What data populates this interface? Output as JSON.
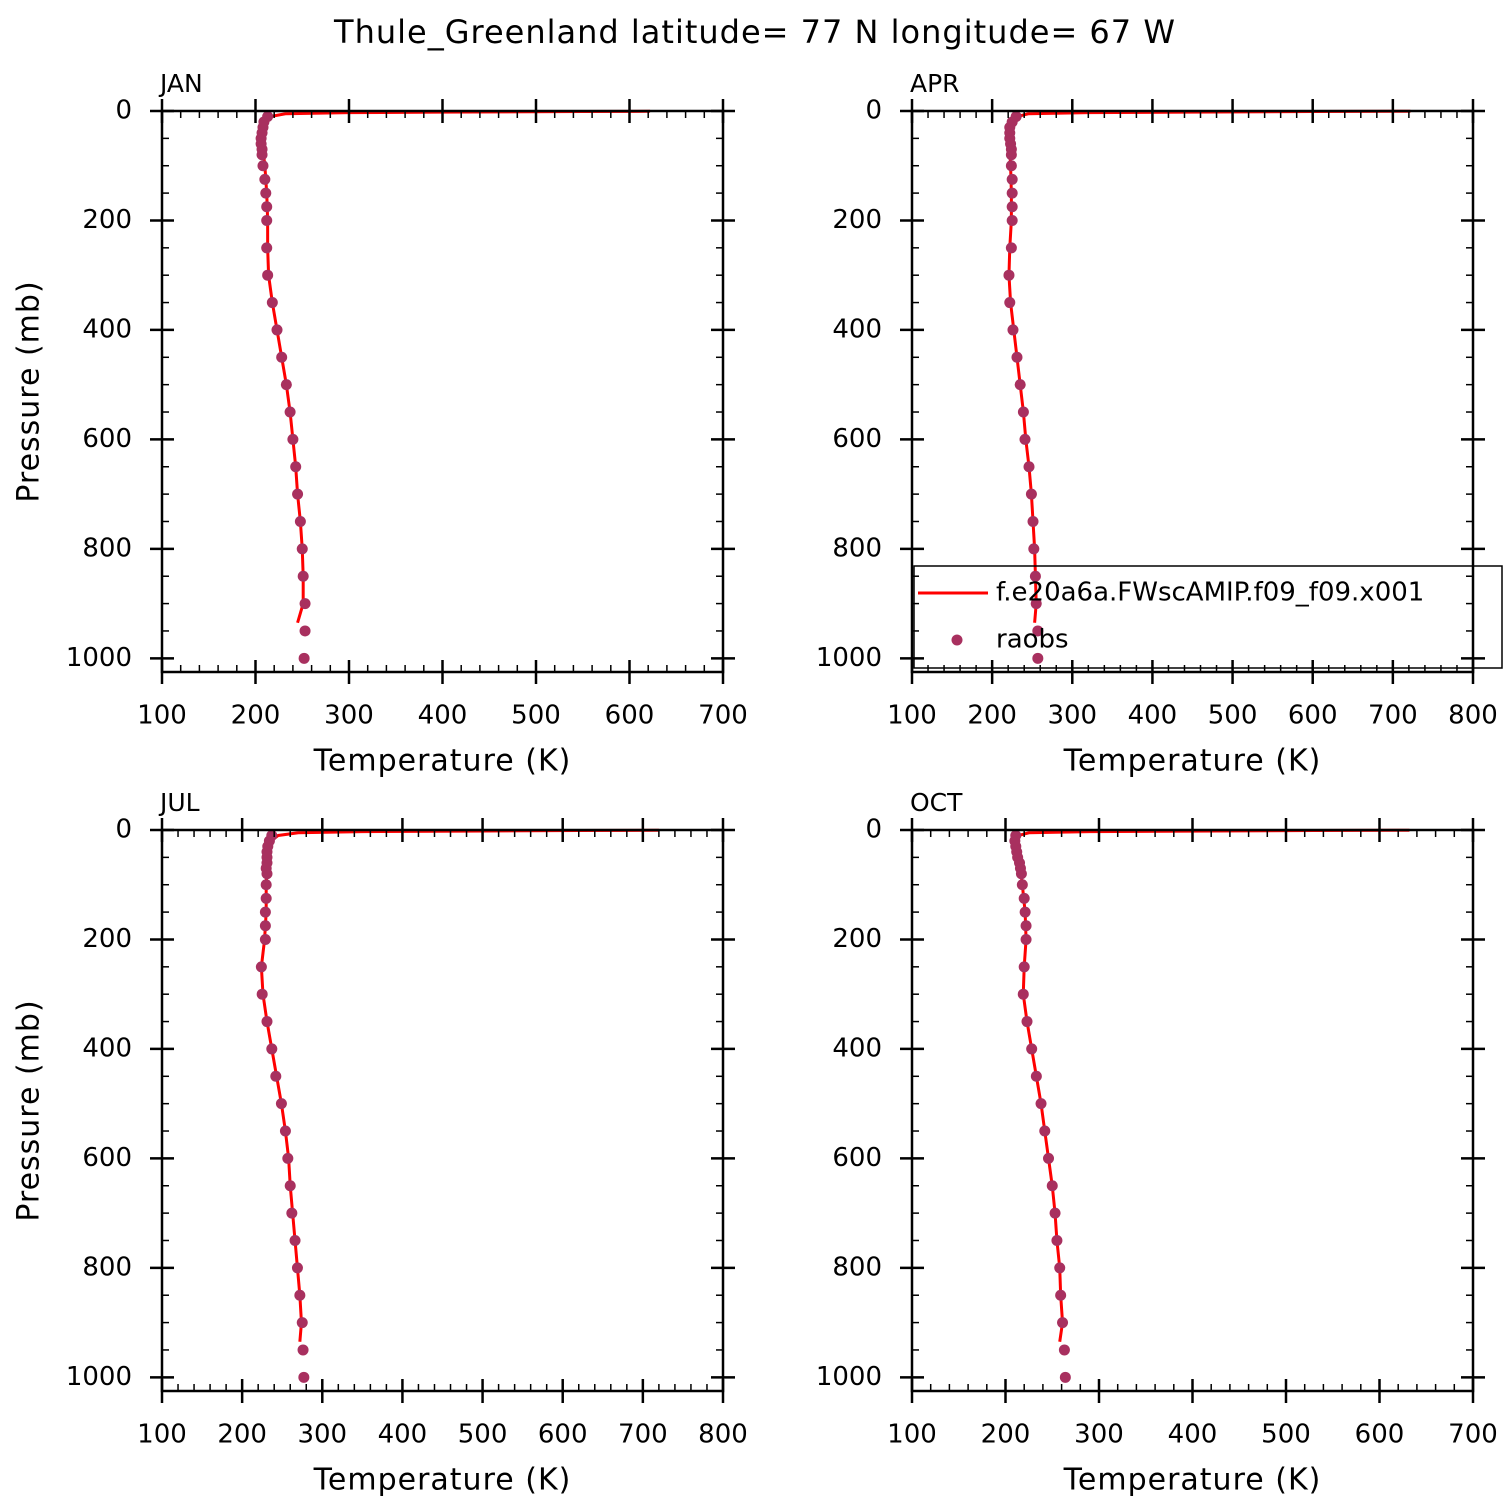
{
  "title": "Thule_Greenland  latitude= 77 N longitude= 67 W",
  "chart_data": [
    {
      "type": "line",
      "title": "JAN",
      "xlabel": "Temperature (K)",
      "ylabel": "Pressure (mb)",
      "xlim": [
        100,
        700
      ],
      "xticks": [
        100,
        200,
        300,
        400,
        500,
        600,
        700
      ],
      "xminorticks": [
        120,
        140,
        160,
        180,
        220,
        240,
        260,
        280,
        320,
        340,
        360,
        380,
        420,
        440,
        460,
        480,
        520,
        540,
        560,
        580,
        620,
        640,
        660,
        680
      ],
      "ylim": [
        1025,
        0
      ],
      "yticks": [
        0,
        200,
        400,
        600,
        800,
        1000
      ],
      "yminorticks": [
        50,
        100,
        150,
        250,
        300,
        350,
        450,
        500,
        550,
        650,
        700,
        750,
        850,
        900,
        950
      ],
      "series": [
        {
          "type": "line",
          "color": "#ff0000",
          "x": [
            245,
            251,
            251,
            250,
            248,
            245,
            243,
            240,
            237,
            233,
            228,
            223,
            218,
            214,
            213,
            213,
            212,
            210,
            208,
            207,
            209,
            211,
            216,
            232,
            300,
            400,
            550,
            622
          ],
          "y": [
            935,
            900,
            850,
            800,
            750,
            700,
            650,
            600,
            550,
            500,
            450,
            400,
            350,
            300,
            250,
            200,
            150,
            100,
            70,
            50,
            30,
            20,
            10,
            5,
            3,
            2,
            1,
            0.5
          ]
        },
        {
          "type": "scatter",
          "color": "#a8305f",
          "x": [
            252,
            253,
            253,
            251,
            250,
            248,
            245,
            243,
            240,
            237,
            233,
            228,
            223,
            218,
            213,
            212,
            212,
            212,
            211,
            210,
            208,
            207,
            207,
            206,
            206,
            207,
            208,
            209,
            213
          ],
          "y": [
            1000,
            950,
            900,
            850,
            800,
            750,
            700,
            650,
            600,
            550,
            500,
            450,
            400,
            350,
            300,
            250,
            200,
            175,
            150,
            125,
            100,
            80,
            70,
            60,
            50,
            40,
            30,
            20,
            10
          ]
        }
      ]
    },
    {
      "type": "line",
      "title": "APR",
      "xlabel": "Temperature (K)",
      "legend": "lower left",
      "xlim": [
        100,
        800
      ],
      "xticks": [
        100,
        200,
        300,
        400,
        500,
        600,
        700,
        800
      ],
      "xminorticks": [
        120,
        140,
        160,
        180,
        220,
        240,
        260,
        280,
        320,
        340,
        360,
        380,
        420,
        440,
        460,
        480,
        520,
        540,
        560,
        580,
        620,
        640,
        660,
        680,
        720,
        740,
        760,
        780
      ],
      "ylim": [
        1025,
        0
      ],
      "yticks": [
        0,
        200,
        400,
        600,
        800,
        1000
      ],
      "yminorticks": [
        50,
        100,
        150,
        250,
        300,
        350,
        450,
        500,
        550,
        650,
        700,
        750,
        850,
        900,
        950
      ],
      "series": [
        {
          "name": "f.e20a6a.FWscAMIP.f09_f09.x001",
          "type": "line",
          "color": "#ff0000",
          "x": [
            253,
            255,
            254,
            253,
            251,
            249,
            246,
            242,
            239,
            235,
            231,
            227,
            223,
            221,
            222,
            224,
            224,
            223,
            222,
            221,
            222,
            225,
            232,
            245,
            320,
            450,
            600,
            722
          ],
          "y": [
            935,
            900,
            850,
            800,
            750,
            700,
            650,
            600,
            550,
            500,
            450,
            400,
            350,
            300,
            250,
            200,
            150,
            100,
            70,
            50,
            30,
            20,
            10,
            5,
            3,
            2,
            1,
            0.5
          ]
        },
        {
          "name": "raobs",
          "type": "scatter",
          "color": "#a8305f",
          "x": [
            257,
            257,
            255,
            254,
            252,
            251,
            249,
            246,
            241,
            239,
            235,
            231,
            226,
            222,
            221,
            224,
            225,
            225,
            225,
            225,
            224,
            224,
            224,
            223,
            222,
            222,
            222,
            225,
            230
          ],
          "y": [
            1000,
            950,
            900,
            850,
            800,
            750,
            700,
            650,
            600,
            550,
            500,
            450,
            400,
            350,
            300,
            250,
            200,
            175,
            150,
            125,
            100,
            80,
            70,
            60,
            50,
            40,
            30,
            20,
            10
          ]
        }
      ]
    },
    {
      "type": "line",
      "title": "JUL",
      "xlabel": "Temperature (K)",
      "ylabel": "Pressure (mb)",
      "xlim": [
        100,
        800
      ],
      "xticks": [
        100,
        200,
        300,
        400,
        500,
        600,
        700,
        800
      ],
      "xminorticks": [
        120,
        140,
        160,
        180,
        220,
        240,
        260,
        280,
        320,
        340,
        360,
        380,
        420,
        440,
        460,
        480,
        520,
        540,
        560,
        580,
        620,
        640,
        660,
        680,
        720,
        740,
        760,
        780
      ],
      "ylim": [
        1025,
        0
      ],
      "yticks": [
        0,
        200,
        400,
        600,
        800,
        1000
      ],
      "yminorticks": [
        50,
        100,
        150,
        250,
        300,
        350,
        450,
        500,
        550,
        650,
        700,
        750,
        850,
        900,
        950
      ],
      "series": [
        {
          "type": "line",
          "color": "#ff0000",
          "x": [
            272,
            274,
            272,
            269,
            266,
            263,
            260,
            258,
            254,
            249,
            243,
            237,
            231,
            226,
            224,
            228,
            230,
            230,
            231,
            231,
            233,
            236,
            245,
            270,
            350,
            480,
            620,
            720
          ],
          "y": [
            935,
            900,
            850,
            800,
            750,
            700,
            650,
            600,
            550,
            500,
            450,
            400,
            350,
            300,
            250,
            200,
            150,
            100,
            70,
            50,
            30,
            20,
            10,
            5,
            3,
            2,
            1,
            0.5
          ]
        },
        {
          "type": "scatter",
          "color": "#a8305f",
          "x": [
            277,
            276,
            275,
            272,
            269,
            266,
            262,
            260,
            257,
            254,
            249,
            242,
            237,
            231,
            225,
            224,
            229,
            229,
            229,
            230,
            230,
            231,
            230,
            231,
            231,
            231,
            232,
            234,
            237
          ],
          "y": [
            1000,
            950,
            900,
            850,
            800,
            750,
            700,
            650,
            600,
            550,
            500,
            450,
            400,
            350,
            300,
            250,
            200,
            175,
            150,
            125,
            100,
            80,
            70,
            60,
            50,
            40,
            30,
            20,
            10
          ]
        }
      ]
    },
    {
      "type": "line",
      "title": "OCT",
      "xlabel": "Temperature (K)",
      "xlim": [
        100,
        700
      ],
      "xticks": [
        100,
        200,
        300,
        400,
        500,
        600,
        700
      ],
      "xminorticks": [
        120,
        140,
        160,
        180,
        220,
        240,
        260,
        280,
        320,
        340,
        360,
        380,
        420,
        440,
        460,
        480,
        520,
        540,
        560,
        580,
        620,
        640,
        660,
        680
      ],
      "ylim": [
        1025,
        0
      ],
      "yticks": [
        0,
        200,
        400,
        600,
        800,
        1000
      ],
      "yminorticks": [
        50,
        100,
        150,
        250,
        300,
        350,
        450,
        500,
        550,
        650,
        700,
        750,
        850,
        900,
        950
      ],
      "series": [
        {
          "type": "line",
          "color": "#ff0000",
          "x": [
            258,
            261,
            259,
            258,
            255,
            253,
            250,
            246,
            242,
            238,
            233,
            228,
            223,
            219,
            220,
            222,
            221,
            218,
            216,
            214,
            212,
            212,
            214,
            225,
            290,
            400,
            530,
            632
          ],
          "y": [
            935,
            900,
            850,
            800,
            750,
            700,
            650,
            600,
            550,
            500,
            450,
            400,
            350,
            300,
            250,
            200,
            150,
            100,
            70,
            50,
            30,
            20,
            10,
            5,
            3,
            2,
            1,
            0.5
          ]
        },
        {
          "type": "scatter",
          "color": "#a8305f",
          "x": [
            264,
            263,
            261,
            259,
            258,
            255,
            253,
            250,
            246,
            242,
            238,
            233,
            228,
            223,
            219,
            220,
            222,
            222,
            221,
            220,
            218,
            217,
            216,
            215,
            213,
            212,
            211,
            210,
            211
          ],
          "y": [
            1000,
            950,
            900,
            850,
            800,
            750,
            700,
            650,
            600,
            550,
            500,
            450,
            400,
            350,
            300,
            250,
            200,
            175,
            150,
            125,
            100,
            80,
            70,
            60,
            50,
            40,
            30,
            20,
            10
          ]
        }
      ]
    }
  ]
}
